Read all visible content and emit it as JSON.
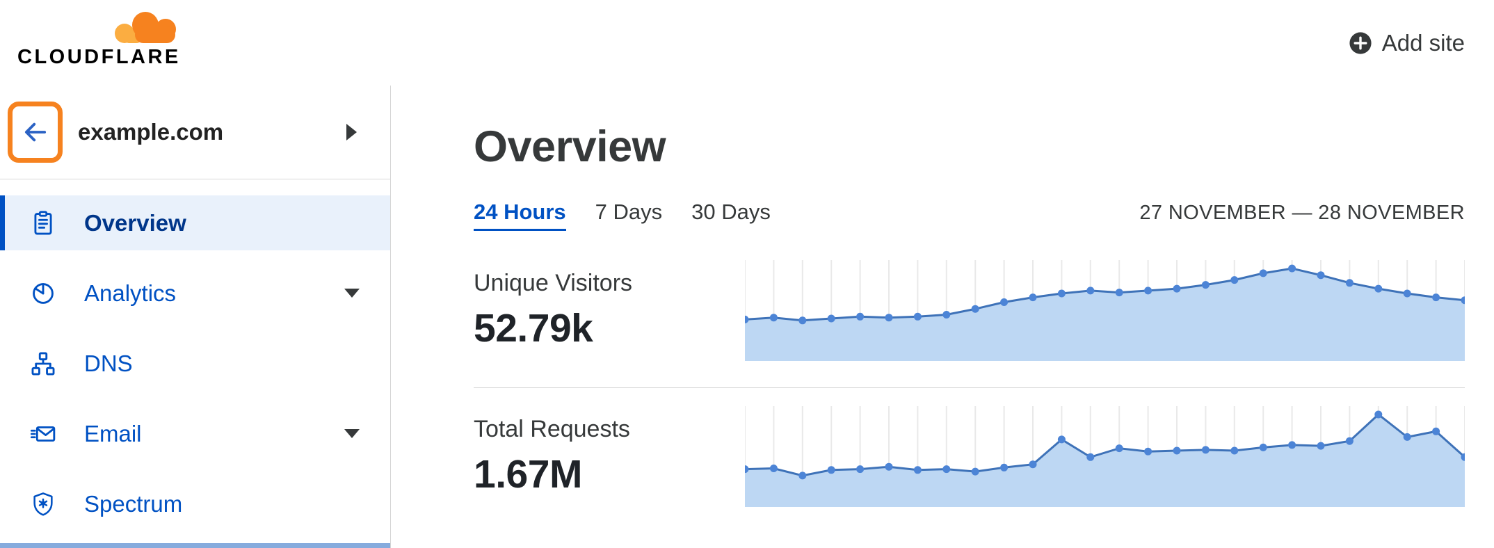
{
  "header": {
    "logo_text": "CLOUDFLARE",
    "add_site_label": "Add site"
  },
  "sidebar": {
    "site_name": "example.com",
    "items": [
      {
        "label": "Overview",
        "icon": "clipboard-icon",
        "active": true,
        "expandable": false
      },
      {
        "label": "Analytics",
        "icon": "pie-chart-icon",
        "active": false,
        "expandable": true
      },
      {
        "label": "DNS",
        "icon": "sitemap-icon",
        "active": false,
        "expandable": false
      },
      {
        "label": "Email",
        "icon": "envelope-icon",
        "active": false,
        "expandable": true
      },
      {
        "label": "Spectrum",
        "icon": "shield-icon",
        "active": false,
        "expandable": false
      }
    ]
  },
  "main": {
    "title": "Overview",
    "tabs": [
      {
        "label": "24 Hours",
        "active": true
      },
      {
        "label": "7 Days",
        "active": false
      },
      {
        "label": "30 Days",
        "active": false
      }
    ],
    "date_range": "27 NOVEMBER — 28 NOVEMBER",
    "metrics": [
      {
        "label": "Unique Visitors",
        "value": "52.79k"
      },
      {
        "label": "Total Requests",
        "value": "1.67M"
      }
    ]
  },
  "colors": {
    "brand_orange": "#f6821f",
    "brand_orange_light": "#fbad41",
    "link_blue": "#0051c3",
    "active_nav_bg": "#e9f1fb",
    "text_dark": "#36393a"
  },
  "chart_data": [
    {
      "type": "area",
      "title": "Unique Visitors — 24 Hours",
      "x_unit": "hour (27 Nov – 28 Nov)",
      "value_unit": "thousand visitors per hour",
      "total_label": "52.79k",
      "values": [
        1.29,
        1.35,
        1.26,
        1.32,
        1.38,
        1.35,
        1.38,
        1.44,
        1.62,
        1.83,
        1.98,
        2.1,
        2.19,
        2.13,
        2.19,
        2.25,
        2.37,
        2.52,
        2.73,
        2.88,
        2.67,
        2.43,
        2.25,
        2.1,
        1.98,
        1.89
      ],
      "grid": true,
      "legend": "none",
      "grid_color": "#e9e9e9",
      "line_color": "#3e72b8",
      "dot_color": "#4c84d6",
      "fill_color": "#bdd7f3"
    },
    {
      "type": "area",
      "title": "Total Requests — 24 Hours",
      "x_unit": "hour (27 Nov – 28 Nov)",
      "value_unit": "thousand requests per hour",
      "total_label": "1.67M",
      "values": [
        47,
        48,
        39,
        46,
        47,
        50,
        46,
        47,
        44,
        49,
        53,
        84,
        62,
        73,
        69,
        70,
        71,
        70,
        74,
        77,
        76,
        82,
        115,
        87,
        94,
        62
      ],
      "grid": true,
      "legend": "none",
      "grid_color": "#e9e9e9",
      "line_color": "#3e72b8",
      "dot_color": "#4c84d6",
      "fill_color": "#bdd7f3"
    }
  ]
}
